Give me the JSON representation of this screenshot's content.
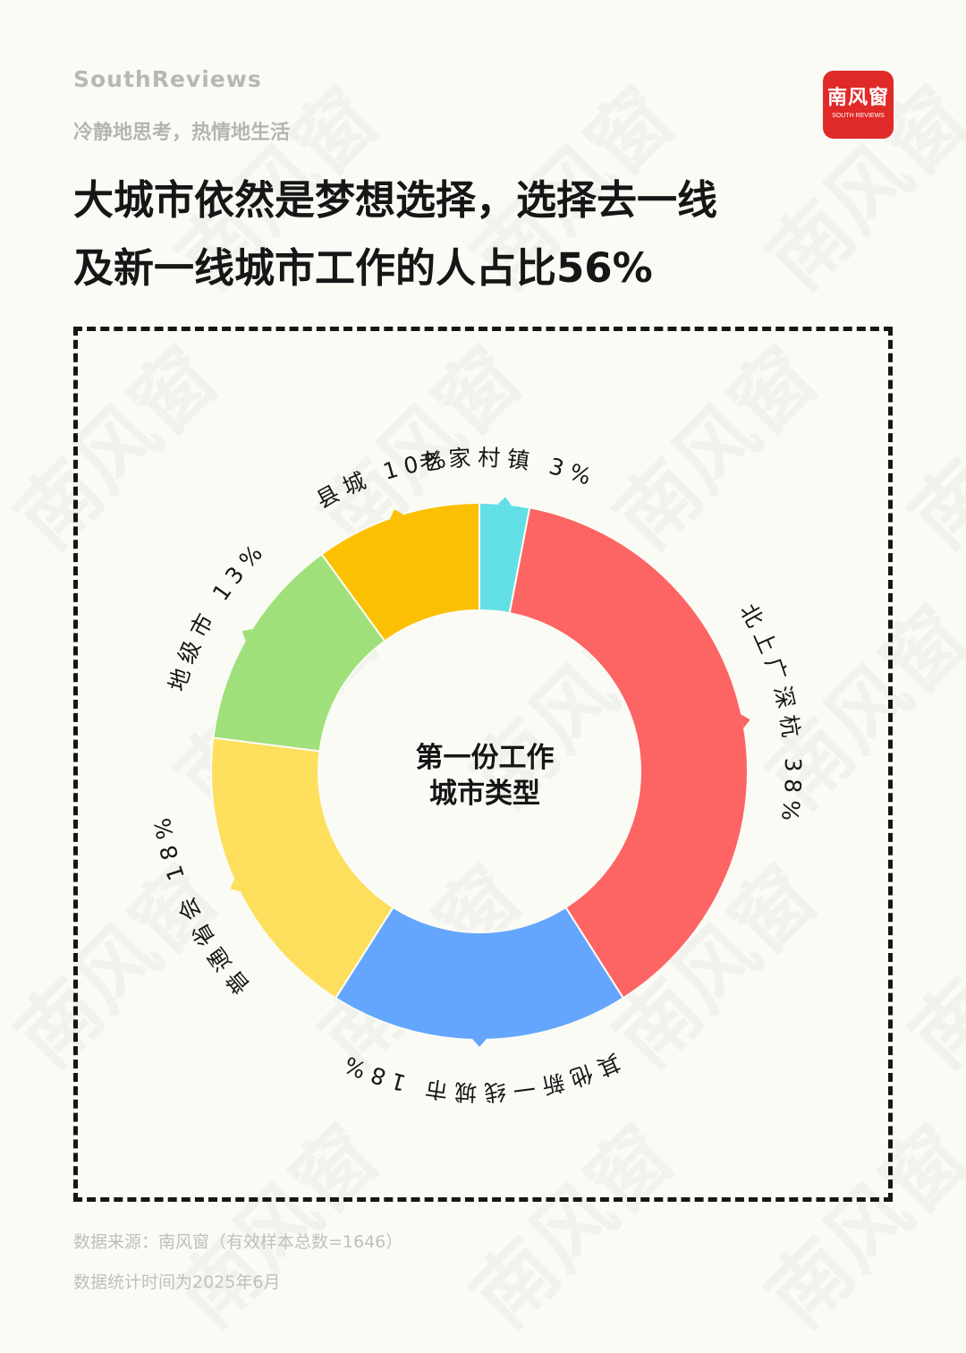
{
  "brand": {
    "name_en": "SouthReviews",
    "tagline": "冷静地思考，热情地生活",
    "logo_cn": "南风窗",
    "logo_en": "SOUTH REVIEWS",
    "watermark": "南风窗"
  },
  "headline": {
    "line1": "大城市依然是梦想选择，选择去一线",
    "line2": "及新一线城市工作的人占比56%"
  },
  "center_label": {
    "line1": "第一份工作",
    "line2": "城市类型"
  },
  "footer": {
    "source": "数据来源：南风窗（有效样本总数=1646）",
    "date": "数据统计时间为2025年6月"
  },
  "chart_data": {
    "type": "pie",
    "style": "donut",
    "slices": [
      {
        "label": "老家村镇 3%",
        "value": 3,
        "color": "#62dfe4"
      },
      {
        "label": "北上广深杭 38%",
        "value": 38,
        "color": "#fd6464"
      },
      {
        "label": "其他新一线城市 18%",
        "value": 18,
        "color": "#64a6fd"
      },
      {
        "label": "普通省会 18%",
        "value": 18,
        "color": "#fddf5d"
      },
      {
        "label": "地级市 13%",
        "value": 13,
        "color": "#9fe07a"
      },
      {
        "label": "县城 10%",
        "value": 10,
        "color": "#fcc002"
      }
    ]
  }
}
